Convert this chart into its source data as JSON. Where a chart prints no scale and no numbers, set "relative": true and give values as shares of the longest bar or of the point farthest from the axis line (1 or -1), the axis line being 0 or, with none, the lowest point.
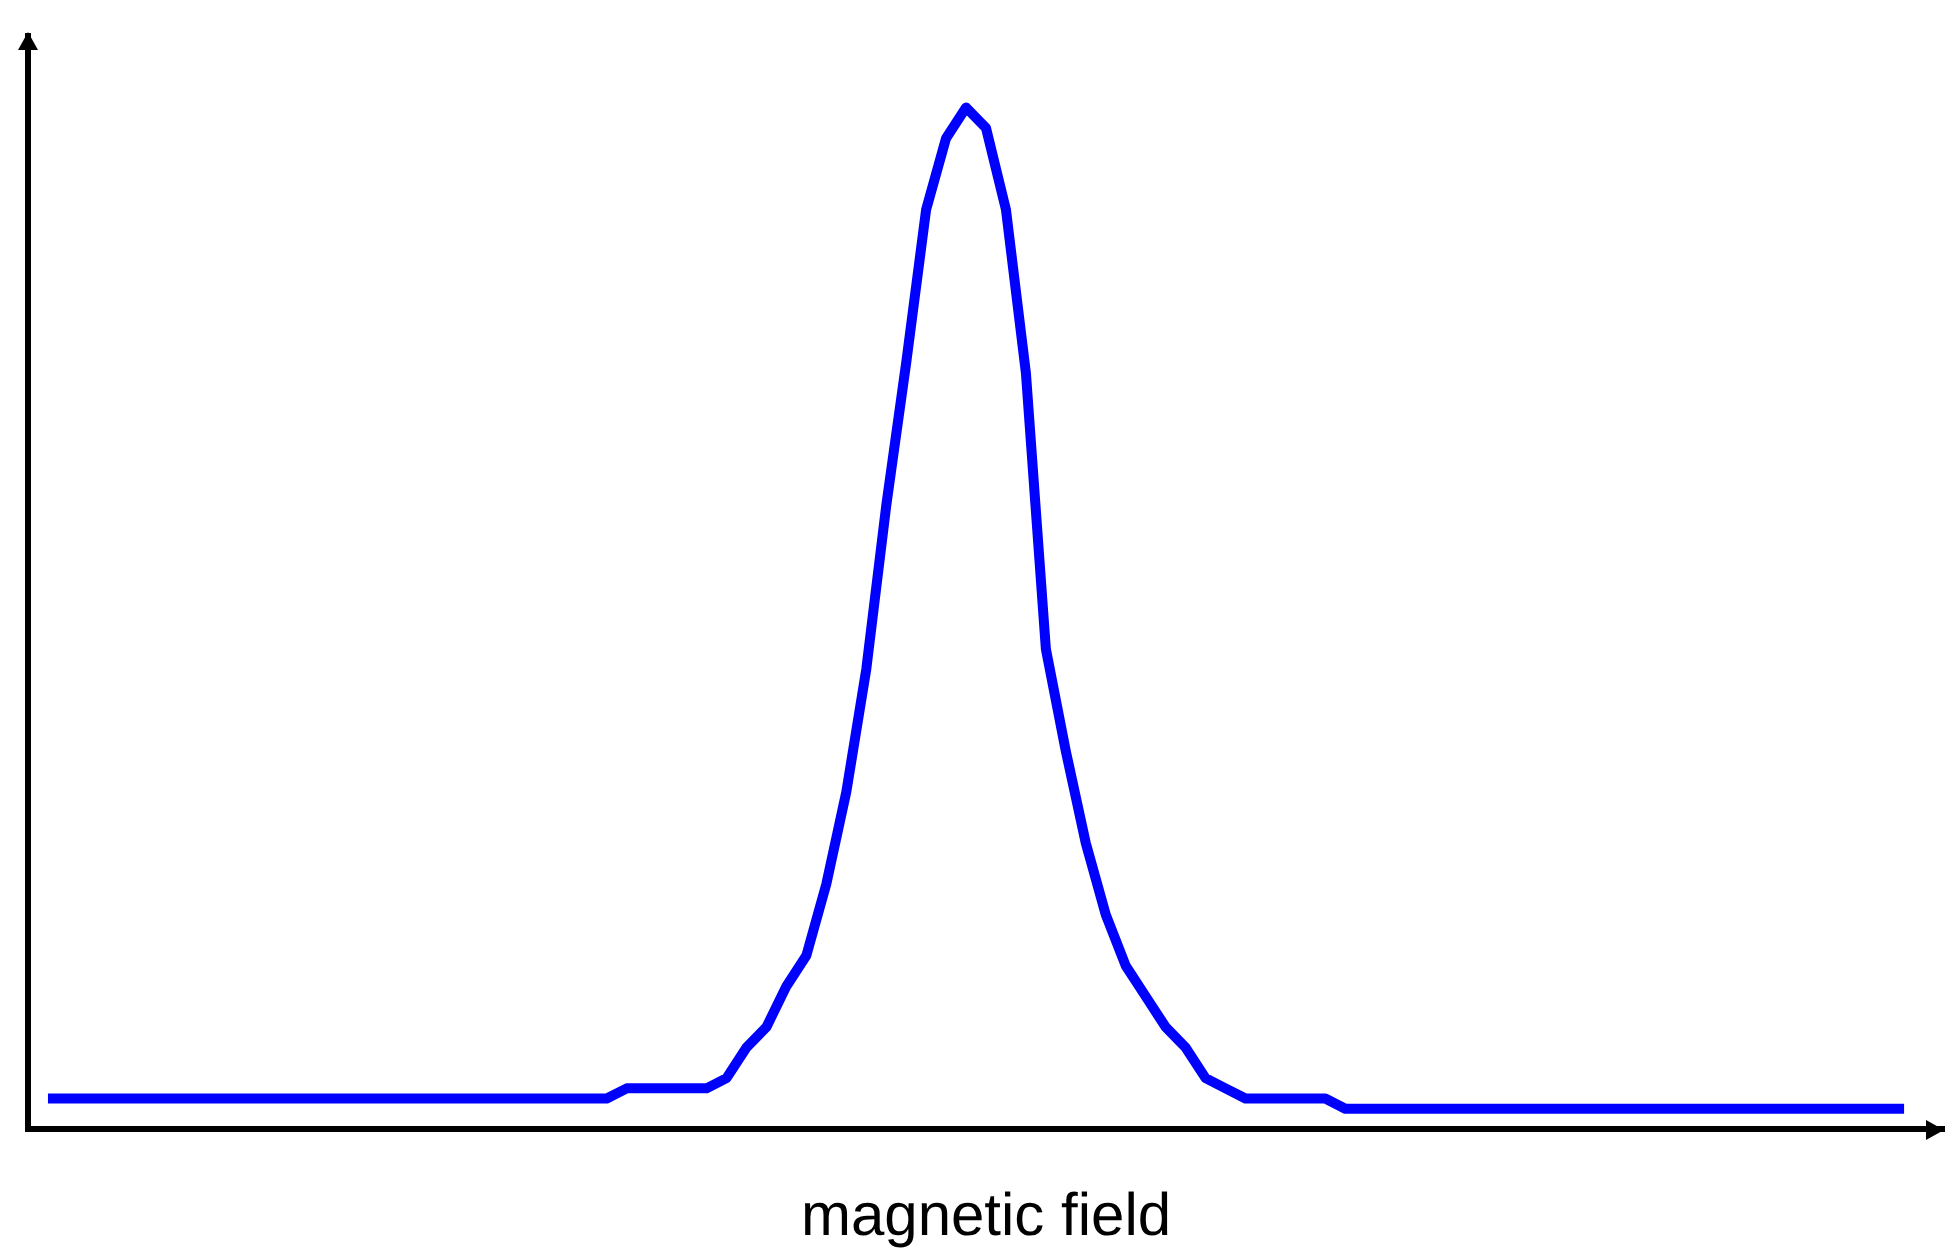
{
  "chart_data": {
    "type": "line",
    "relative": true,
    "xlabel": "magnetic field",
    "grid": false,
    "legend": false,
    "marker": "none",
    "line_style": "solid",
    "categories": [
      null,
      null,
      null,
      null,
      null,
      null,
      null,
      null,
      null,
      null,
      null,
      null,
      null,
      null,
      null,
      null,
      null,
      null,
      null,
      null,
      null,
      null,
      null,
      null,
      null,
      null,
      null,
      null,
      null,
      null,
      null,
      null,
      null,
      null,
      null,
      null,
      null,
      null,
      null,
      null,
      null,
      null,
      null,
      null,
      null,
      null,
      null,
      null,
      null,
      null,
      null,
      null,
      null,
      null,
      null,
      null,
      null,
      null,
      null,
      null,
      null,
      null,
      null,
      null,
      null,
      null,
      null,
      null,
      null,
      null,
      null,
      null,
      null,
      null,
      null,
      null,
      null,
      null,
      null,
      null,
      null,
      null,
      null,
      null,
      null,
      null,
      null,
      null,
      null,
      null,
      null,
      null,
      null,
      null,
      null,
      null,
      null
    ],
    "series": [
      {
        "color": "#0000ff",
        "values": [
          null,
          0.03,
          0.03,
          0.03,
          0.03,
          0.03,
          0.03,
          0.03,
          0.03,
          0.03,
          0.03,
          0.03,
          0.03,
          0.03,
          0.03,
          0.03,
          0.03,
          0.03,
          0.03,
          0.03,
          0.03,
          0.03,
          0.03,
          0.03,
          0.03,
          0.03,
          0.03,
          0.03,
          0.03,
          0.03,
          0.04,
          0.04,
          0.04,
          0.04,
          0.04,
          0.05,
          0.08,
          0.1,
          0.14,
          0.17,
          0.24,
          0.33,
          0.45,
          0.61,
          0.75,
          0.9,
          0.97,
          1,
          0.98,
          0.9,
          0.74,
          0.47,
          0.37,
          0.28,
          0.21,
          0.16,
          0.13,
          0.1,
          0.08,
          0.05,
          0.04,
          0.03,
          0.03,
          0.03,
          0.03,
          0.03,
          0.02,
          0.02,
          0.02,
          0.02,
          0.02,
          0.02,
          0.02,
          0.02,
          0.02,
          0.02,
          0.02,
          0.02,
          0.02,
          0.02,
          0.02,
          0.02,
          0.02,
          0.02,
          0.02,
          0.02,
          0.02,
          0.02,
          0.02,
          0.02,
          0.02,
          0.02,
          0.02,
          0.02,
          0.02,
          null,
          null
        ]
      }
    ]
  }
}
